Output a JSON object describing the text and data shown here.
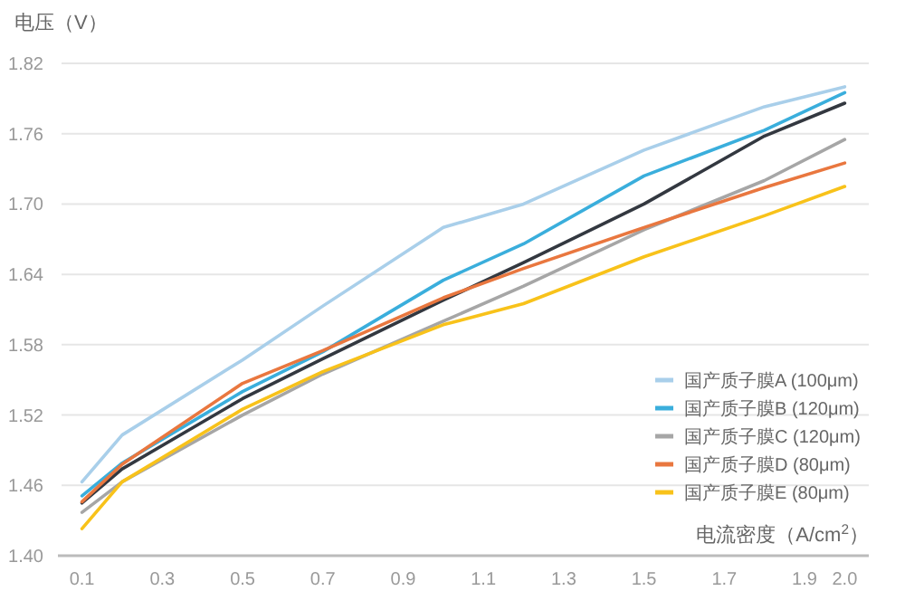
{
  "chart_data": {
    "type": "line",
    "ylabel": "电压（V）",
    "xlabel": "电流密度（A/cm$^{2}$）",
    "x": [
      0.1,
      0.2,
      0.5,
      0.7,
      1.0,
      1.2,
      1.5,
      1.8,
      2.0
    ],
    "xlim": [
      0.04,
      2.06
    ],
    "xticks": [
      0.1,
      0.3,
      0.5,
      0.7,
      0.9,
      1.1,
      1.3,
      1.5,
      1.7,
      1.9,
      {
        "value": 2.0,
        "label": "2.0"
      }
    ],
    "ylim": [
      1.4,
      1.82
    ],
    "yticks": [
      {
        "value": 1.4,
        "label": "1.40"
      },
      1.46,
      1.52,
      1.58,
      1.64,
      {
        "value": 1.7,
        "label": "1.70"
      },
      1.76,
      1.82
    ],
    "grid": "y",
    "legend": "right",
    "marker": "none",
    "line_style": "solid",
    "series": [
      {
        "name": "国产质子膜A (100μm)",
        "color": "#a9cfea",
        "values": [
          1.463,
          1.503,
          1.567,
          1.613,
          1.68,
          1.7,
          1.746,
          1.783,
          1.8
        ]
      },
      {
        "name": "国产质子膜B (120μm)",
        "color": "#3aaedc",
        "values": [
          1.451,
          1.479,
          1.54,
          1.574,
          1.635,
          1.666,
          1.724,
          1.763,
          1.795
        ]
      },
      {
        "color": "#333840",
        "values": [
          1.445,
          1.474,
          1.534,
          1.568,
          1.618,
          1.65,
          1.7,
          1.758,
          1.786
        ]
      },
      {
        "name": "国产质子膜C (120μm)",
        "color": "#a6a6a6",
        "values": [
          1.437,
          1.463,
          1.52,
          1.555,
          1.6,
          1.63,
          1.678,
          1.72,
          1.755
        ]
      },
      {
        "name": "国产质子膜D (80μm)",
        "color": "#e9773f",
        "values": [
          1.446,
          1.478,
          1.547,
          1.575,
          1.62,
          1.645,
          1.68,
          1.714,
          1.735
        ]
      },
      {
        "name": "国产质子膜E (80μm)",
        "color": "#f8c21a",
        "values": [
          1.423,
          1.463,
          1.525,
          1.557,
          1.597,
          1.615,
          1.655,
          1.69,
          1.715
        ]
      }
    ]
  }
}
